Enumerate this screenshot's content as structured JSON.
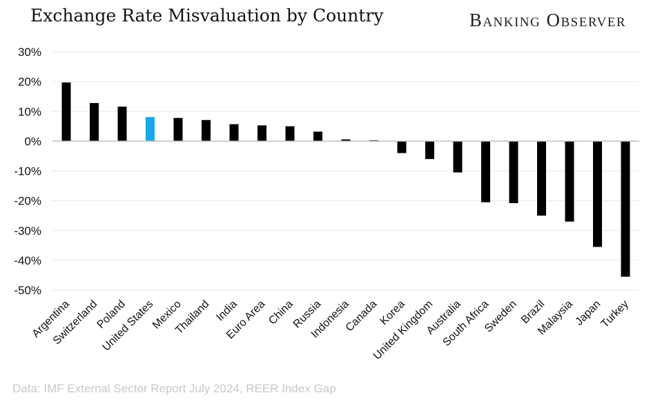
{
  "header": {
    "title": "Exchange Rate Misvaluation by Country",
    "brand": "Banking Observer"
  },
  "footer": {
    "source": "Data: IMF External Sector Report July 2024, REER Index Gap"
  },
  "colors": {
    "bar": "#000000",
    "highlight": "#1aa7e8",
    "grid": "#e6e6e6",
    "zero_line": "#bdbdbd"
  },
  "chart_data": {
    "type": "bar",
    "title": "Exchange Rate Misvaluation by Country",
    "xlabel": "",
    "ylabel": "",
    "categories": [
      "Argentina",
      "Switzerland",
      "Poland",
      "United States",
      "Mexico",
      "Thailand",
      "India",
      "Euro Area",
      "China",
      "Russia",
      "Indonesia",
      "Canada",
      "Korea",
      "United Kingdom",
      "Australia",
      "South Africa",
      "Sweden",
      "Brazil",
      "Malaysia",
      "Japan",
      "Turkey"
    ],
    "values": [
      19.7,
      12.8,
      11.6,
      8.1,
      7.8,
      7.1,
      5.7,
      5.3,
      5.0,
      3.2,
      0.6,
      0.3,
      -4.0,
      -6.0,
      -10.5,
      -20.5,
      -20.8,
      -25.0,
      -27.0,
      -35.5,
      -45.5
    ],
    "highlight_category": "United States",
    "ylim": [
      -50,
      30
    ],
    "y_ticks": [
      30,
      20,
      10,
      0,
      -10,
      -20,
      -30,
      -40,
      -50
    ],
    "y_tick_labels": [
      "30%",
      "20%",
      "10%",
      "0%",
      "-10%",
      "-20%",
      "-30%",
      "-40%",
      "-50%"
    ],
    "grid": true,
    "legend": "none"
  }
}
